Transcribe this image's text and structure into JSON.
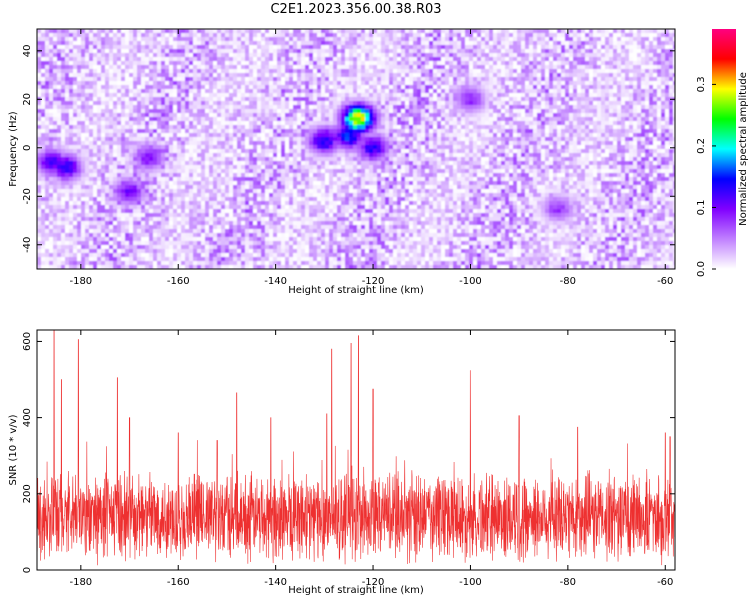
{
  "title": "C2E1.2023.356.00.38.R03",
  "chart_data": [
    {
      "type": "heatmap",
      "xlabel": "Height of straight line (km)",
      "ylabel": "Frequency (Hz)",
      "xlim": [
        -189,
        -58
      ],
      "ylim": [
        -50,
        49
      ],
      "xticks": [
        -180,
        -160,
        -140,
        -120,
        -100,
        -80,
        -60
      ],
      "yticks": [
        -40,
        -20,
        0,
        20,
        40
      ],
      "colorbar": {
        "label": "Normalized spectral amplitude",
        "range": [
          0,
          0.39
        ],
        "ticks": [
          0.0,
          0.1,
          0.2,
          0.3
        ],
        "colors": [
          "#ffffff",
          "#c080ff",
          "#8000ff",
          "#0000ff",
          "#00ffff",
          "#00ff00",
          "#ffff00",
          "#ff0000",
          "#ff0080"
        ]
      },
      "hotspots": [
        {
          "x": -186,
          "y": -6,
          "value": 0.14
        },
        {
          "x": -183,
          "y": -8,
          "value": 0.15
        },
        {
          "x": -170,
          "y": -18,
          "value": 0.12
        },
        {
          "x": -166,
          "y": -4,
          "value": 0.11
        },
        {
          "x": -130,
          "y": 3,
          "value": 0.16
        },
        {
          "x": -125,
          "y": 5,
          "value": 0.18
        },
        {
          "x": -123,
          "y": 12,
          "value": 0.34
        },
        {
          "x": -120,
          "y": 0,
          "value": 0.15
        },
        {
          "x": -100,
          "y": 20,
          "value": 0.1
        },
        {
          "x": -82,
          "y": -25,
          "value": 0.09
        }
      ],
      "grid": false
    },
    {
      "type": "line",
      "xlabel": "Height of straight line (km)",
      "ylabel": "SNR (10 * v/v)",
      "xlim": [
        -189,
        -58
      ],
      "ylim": [
        0,
        630
      ],
      "xticks": [
        -180,
        -160,
        -140,
        -120,
        -100,
        -80,
        -60
      ],
      "yticks": [
        0,
        200,
        400,
        600
      ],
      "series_color": "#ee3030",
      "baseline_mean": 140,
      "peaks": [
        {
          "x": -185.5,
          "y": 630
        },
        {
          "x": -184,
          "y": 500
        },
        {
          "x": -180.5,
          "y": 605
        },
        {
          "x": -172.5,
          "y": 505
        },
        {
          "x": -170,
          "y": 400
        },
        {
          "x": -160,
          "y": 360
        },
        {
          "x": -152,
          "y": 340
        },
        {
          "x": -148,
          "y": 465
        },
        {
          "x": -141,
          "y": 400
        },
        {
          "x": -129.5,
          "y": 410
        },
        {
          "x": -128.5,
          "y": 580
        },
        {
          "x": -124.5,
          "y": 595
        },
        {
          "x": -123,
          "y": 615
        },
        {
          "x": -120,
          "y": 475
        },
        {
          "x": -100,
          "y": 380
        },
        {
          "x": -90,
          "y": 405
        },
        {
          "x": -78,
          "y": 375
        },
        {
          "x": -60,
          "y": 360
        },
        {
          "x": -59,
          "y": 350
        }
      ],
      "grid": false
    }
  ]
}
